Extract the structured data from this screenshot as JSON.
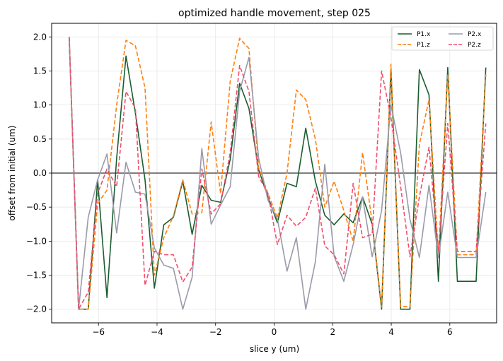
{
  "chart_data": {
    "type": "line",
    "title": "optimized handle movement, step 025",
    "xlabel": "slice y (um)",
    "ylabel": "offset from initial (um)",
    "xlim": [
      -7.6,
      7.6
    ],
    "ylim": [
      -2.2,
      2.2
    ],
    "xticks": [
      -6,
      -4,
      -2,
      0,
      2,
      4,
      6
    ],
    "yticks": [
      -2.0,
      -1.5,
      -1.0,
      -0.5,
      0.0,
      0.5,
      1.0,
      1.5,
      2.0
    ],
    "xtick_labels": [
      "−6",
      "−4",
      "−2",
      "0",
      "2",
      "4",
      "6"
    ],
    "ytick_labels": [
      "−2.0",
      "−1.5",
      "−1.0",
      "−0.5",
      "0.0",
      "0.5",
      "1.0",
      "1.5",
      "2.0"
    ],
    "grid": true,
    "zero_line": true,
    "legend_position": "top-right",
    "x": [
      -7.0,
      -6.68,
      -6.35,
      -6.03,
      -5.71,
      -5.38,
      -5.06,
      -4.74,
      -4.41,
      -4.09,
      -3.77,
      -3.44,
      -3.12,
      -2.8,
      -2.47,
      -2.15,
      -1.83,
      -1.5,
      -1.18,
      -0.86,
      -0.53,
      -0.21,
      0.11,
      0.44,
      0.76,
      1.08,
      1.41,
      1.73,
      2.05,
      2.38,
      2.7,
      3.02,
      3.35,
      3.67,
      3.99,
      4.32,
      4.64,
      4.96,
      5.29,
      5.61,
      5.93,
      6.26,
      6.58,
      6.9,
      7.23
    ],
    "series": [
      {
        "name": "P1.x",
        "color": "#1a5e2f",
        "dash": "solid",
        "values": [
          2.0,
          -2.0,
          -2.0,
          -0.1,
          -1.83,
          0.22,
          1.72,
          0.88,
          -0.1,
          -1.69,
          -0.76,
          -0.65,
          -0.12,
          -0.9,
          -0.18,
          -0.4,
          -0.43,
          0.2,
          1.32,
          0.95,
          0.05,
          -0.35,
          -0.73,
          -0.15,
          -0.2,
          0.66,
          -0.12,
          -0.62,
          -0.76,
          -0.6,
          -0.73,
          -0.35,
          -0.75,
          -2.0,
          1.52,
          -2.0,
          -2.0,
          1.52,
          1.15,
          -1.59,
          1.55,
          -1.59,
          -1.59,
          -1.59,
          1.55
        ]
      },
      {
        "name": "P1.z",
        "color": "#ff7f0e",
        "dash": "dashed",
        "values": [
          2.0,
          -2.0,
          -2.0,
          -0.45,
          -0.25,
          1.0,
          1.95,
          1.87,
          1.25,
          -1.5,
          -0.95,
          -0.63,
          -0.1,
          -0.6,
          -0.58,
          0.75,
          -0.3,
          1.35,
          1.98,
          1.83,
          0.08,
          -0.3,
          -0.66,
          0.0,
          1.22,
          1.08,
          0.5,
          -0.5,
          -0.12,
          -0.55,
          -1.0,
          0.3,
          -0.73,
          -1.97,
          1.6,
          -1.96,
          -1.96,
          0.42,
          1.08,
          -1.2,
          1.45,
          -1.2,
          -1.2,
          -1.2,
          1.45
        ]
      },
      {
        "name": "P2.x",
        "color": "#9a9aaa",
        "dash": "solid",
        "values": [
          2.0,
          -2.0,
          -0.65,
          -0.1,
          0.28,
          -0.88,
          0.16,
          -0.28,
          -0.31,
          -1.1,
          -1.35,
          -1.4,
          -2.0,
          -1.53,
          0.36,
          -0.75,
          -0.47,
          -0.2,
          1.2,
          1.7,
          0.22,
          -0.4,
          -0.67,
          -1.44,
          -0.95,
          -2.0,
          -1.3,
          0.13,
          -1.22,
          -1.59,
          -1.05,
          -0.35,
          -1.23,
          -0.55,
          1.0,
          0.3,
          -0.68,
          -1.24,
          -0.18,
          -1.24,
          -0.28,
          -1.24,
          -1.24,
          -1.24,
          -0.28
        ]
      },
      {
        "name": "P2.z",
        "color": "#ef4f6f",
        "dash": "dashed",
        "values": [
          2.0,
          -2.0,
          -1.75,
          -0.3,
          0.06,
          -0.2,
          1.2,
          0.95,
          -1.65,
          -1.15,
          -1.2,
          -1.2,
          -1.6,
          -1.38,
          0.06,
          -0.6,
          -0.45,
          0.3,
          1.58,
          1.2,
          -0.05,
          -0.3,
          -1.05,
          -0.62,
          -0.78,
          -0.65,
          -0.22,
          -1.07,
          -1.2,
          -1.48,
          -0.15,
          -0.95,
          -0.9,
          1.5,
          0.82,
          -0.2,
          -1.23,
          -0.35,
          0.38,
          -1.15,
          0.73,
          -1.15,
          -1.15,
          -1.15,
          0.73
        ]
      }
    ]
  }
}
